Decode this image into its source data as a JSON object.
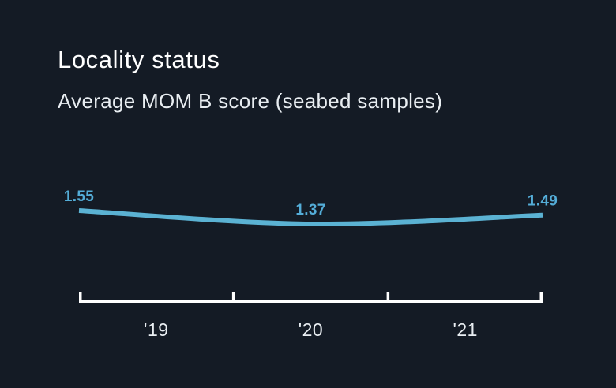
{
  "header": {
    "title": "Locality status",
    "subtitle": "Average MOM B score (seabed samples)"
  },
  "chart_data": {
    "type": "line",
    "title": "Locality status",
    "subtitle": "Average MOM B score (seabed samples)",
    "categories": [
      "'19",
      "'20",
      "'21"
    ],
    "values": [
      1.55,
      1.37,
      1.49
    ],
    "value_labels": [
      "1.55",
      "1.37",
      "1.49"
    ],
    "xlabel": "",
    "ylabel": "Average MOM B score",
    "ylim": [
      1.3,
      1.6
    ],
    "grid": false,
    "legend": false,
    "y_axis_visible": false,
    "line_color": "#5bb2d3",
    "value_label_color": "#54add8",
    "axis_color": "#ffffff"
  },
  "theme": {
    "background": "#141b25",
    "text_primary": "#ffffff",
    "text_secondary": "#e9eef2",
    "accent": "#5bb2d3"
  }
}
